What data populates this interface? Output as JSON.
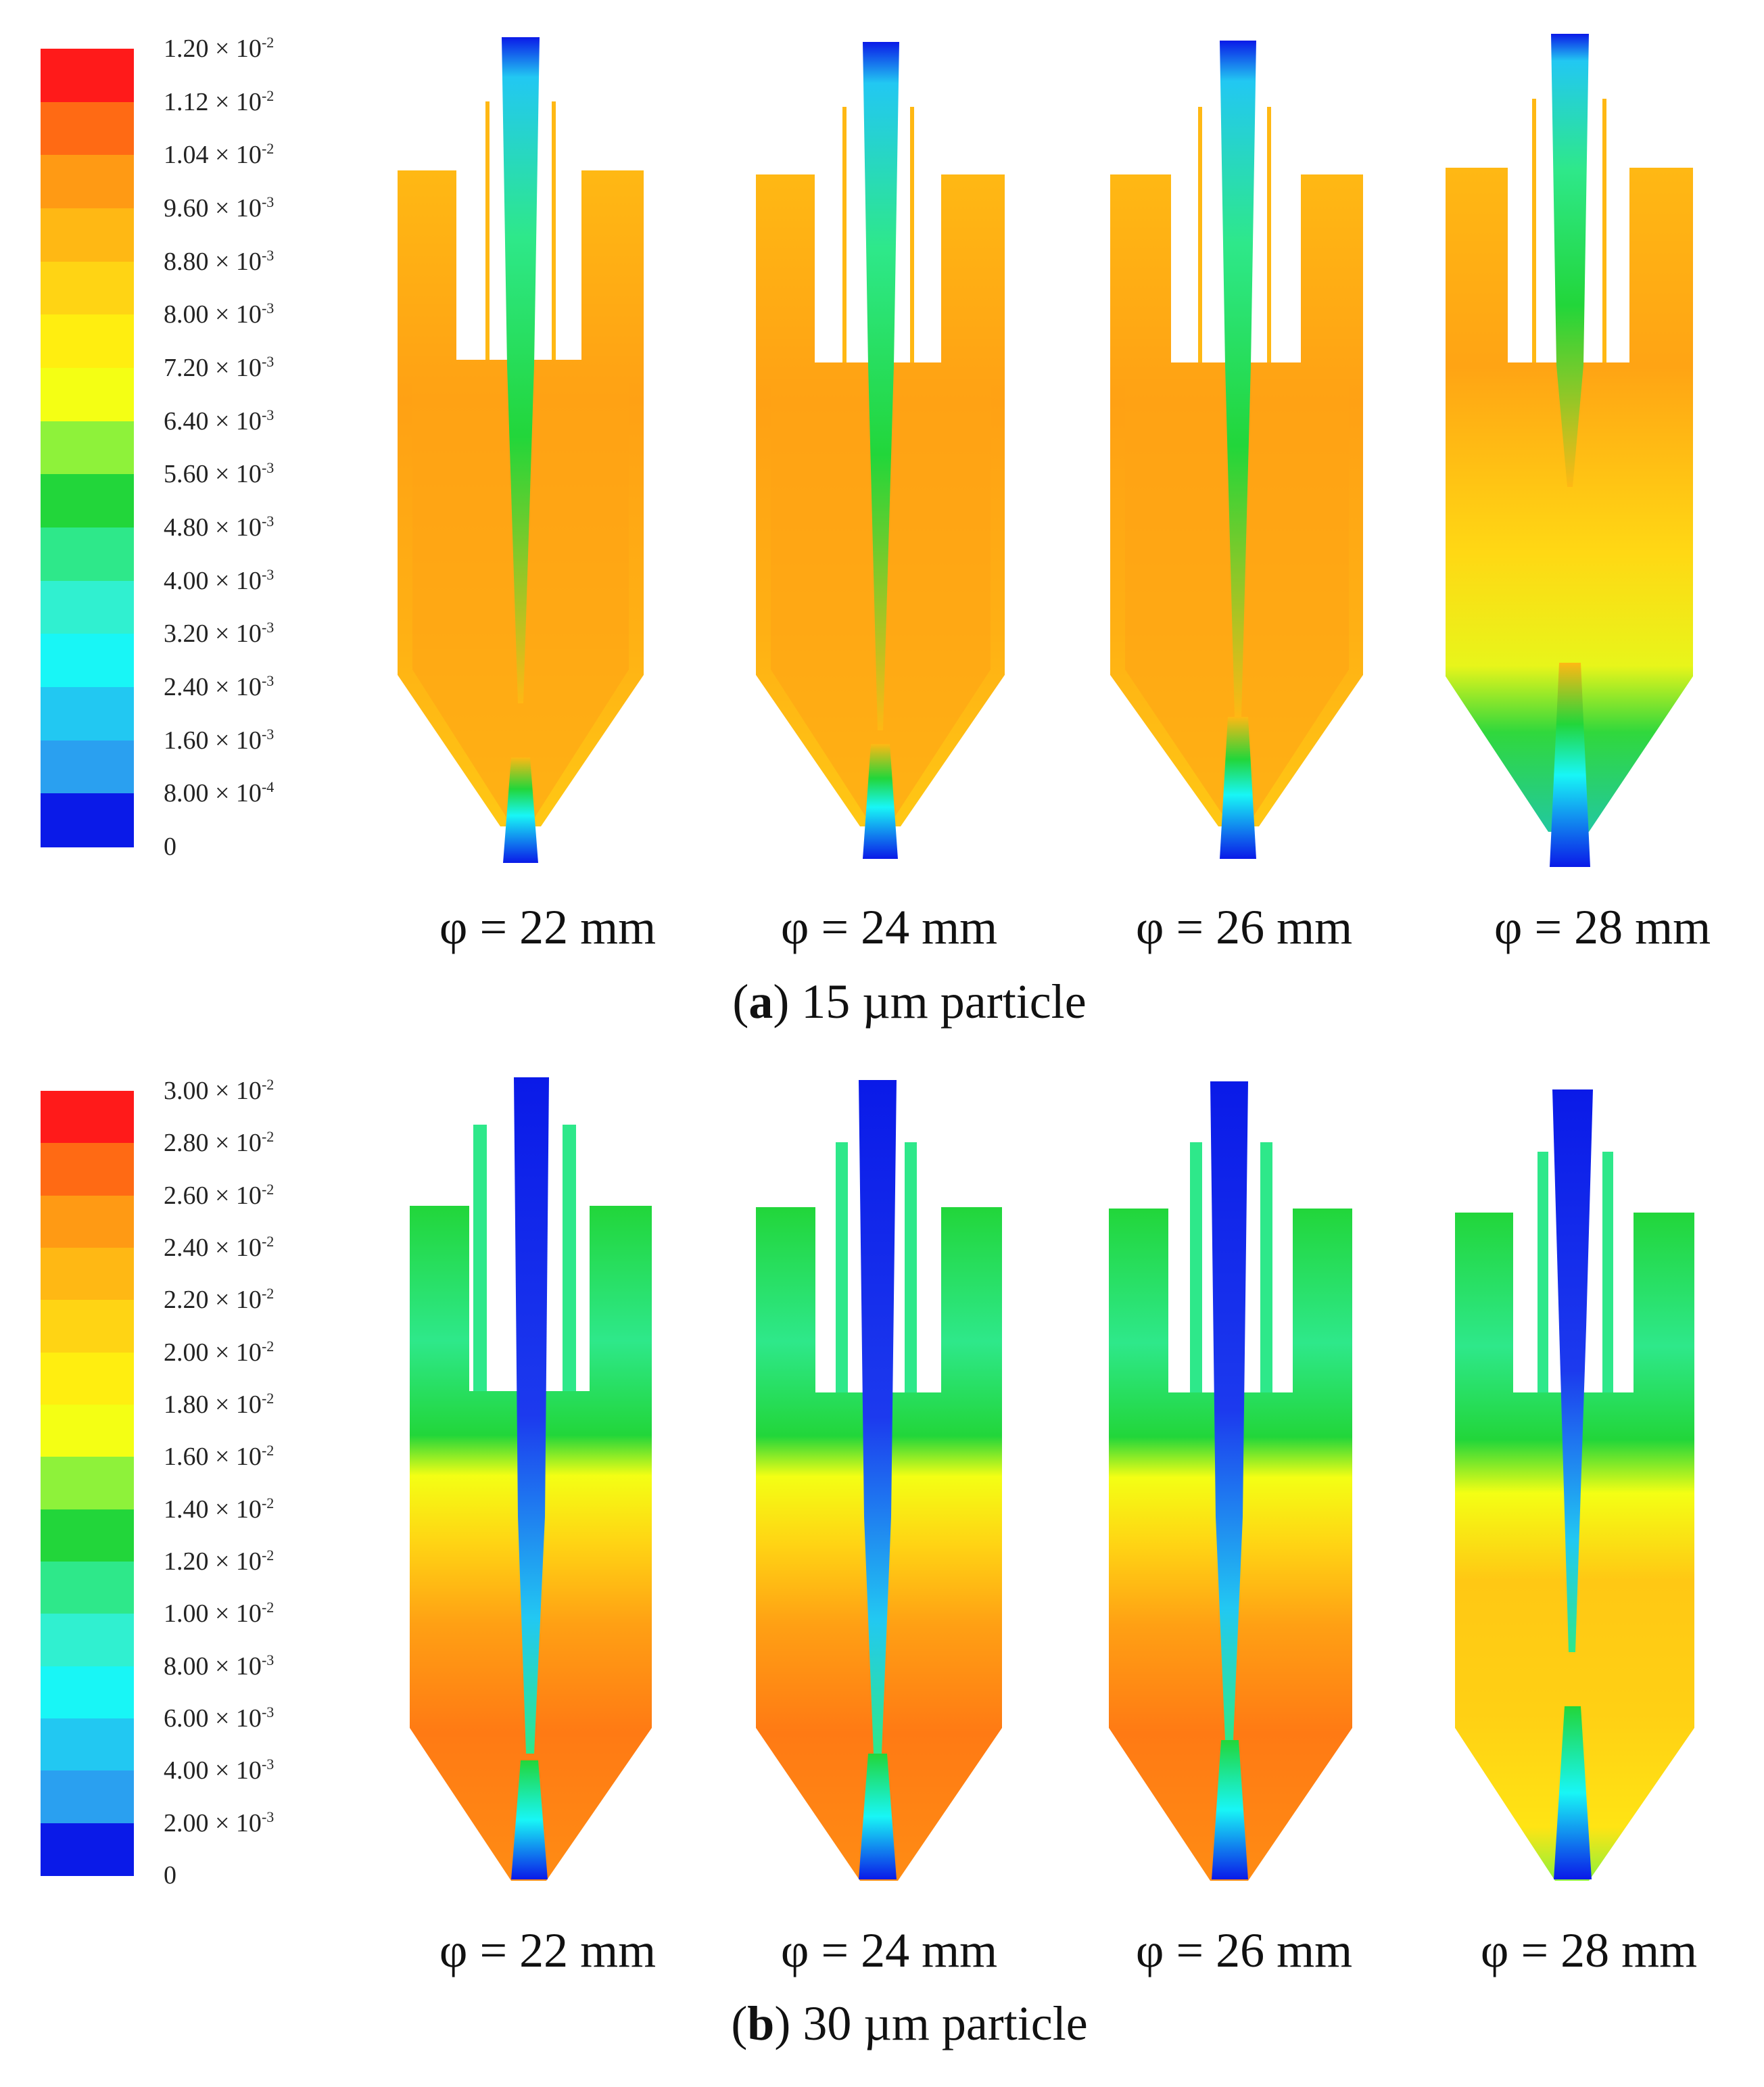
{
  "panel_a": {
    "caption_letter": "a",
    "caption_text": "15 µm particle",
    "colorbar_labels": [
      "1.20 × 10-2",
      "1.12 × 10-2",
      "1.04 × 10-2",
      "9.60 × 10-3",
      "8.80 × 10-3",
      "8.00 × 10-3",
      "7.20 × 10-3",
      "6.40 × 10-3",
      "5.60 × 10-3",
      "4.80 × 10-3",
      "4.00 × 10-3",
      "3.20 × 10-3",
      "2.40 × 10-3",
      "1.60 × 10-3",
      "8.00 × 10-4",
      "0"
    ],
    "colorbar_colors": [
      "#ff1a1a",
      "#ff6a14",
      "#ff9a14",
      "#ffb814",
      "#ffd414",
      "#ffee10",
      "#f4ff14",
      "#8ef23a",
      "#22d63a",
      "#2ee88a",
      "#30f0d0",
      "#18f6f6",
      "#22c8f2",
      "#2aa0f0",
      "#1c6ef0",
      "#0a1ae8"
    ],
    "geometry_labels": [
      "φ = 22 mm",
      "φ = 24 mm",
      "φ = 26 mm",
      "φ = 28 mm"
    ]
  },
  "panel_b": {
    "caption_letter": "b",
    "caption_text": "30 µm particle",
    "colorbar_labels": [
      "3.00 × 10-2",
      "2.80 × 10-2",
      "2.60 × 10-2",
      "2.40 × 10-2",
      "2.20 × 10-2",
      "2.00 × 10-2",
      "1.80 × 10-2",
      "1.60 × 10-2",
      "1.40 × 10-2",
      "1.20 × 10-2",
      "1.00 × 10-2",
      "8.00 × 10-3",
      "6.00 × 10-3",
      "4.00 × 10-3",
      "2.00 × 10-3",
      "0"
    ],
    "colorbar_colors": [
      "#ff1a1a",
      "#ff6a14",
      "#ff9a14",
      "#ffb814",
      "#ffd414",
      "#ffee10",
      "#f4ff14",
      "#8ef23a",
      "#22d63a",
      "#2ee88a",
      "#30f0d0",
      "#18f6f6",
      "#22c8f2",
      "#2aa0f0",
      "#1c6ef0",
      "#0a1ae8"
    ],
    "geometry_labels": [
      "φ = 22 mm",
      "φ = 24 mm",
      "φ = 26 mm",
      "φ = 28 mm"
    ]
  }
}
